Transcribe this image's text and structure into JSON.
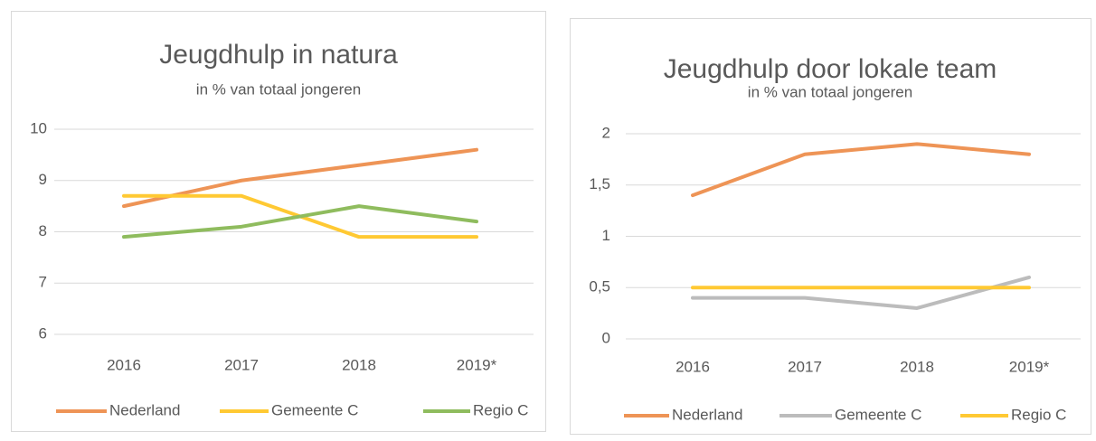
{
  "chart_data": [
    {
      "type": "line",
      "title": "Jeugdhulp in natura",
      "subtitle": "in % van totaal jongeren",
      "categories": [
        "2016",
        "2017",
        "2018",
        "2019*"
      ],
      "series": [
        {
          "name": "Nederland",
          "color": "#ee9456",
          "values": [
            8.5,
            9.0,
            9.3,
            9.6
          ]
        },
        {
          "name": "Gemeente C",
          "color": "#ffc933",
          "values": [
            8.7,
            8.7,
            7.9,
            7.9
          ]
        },
        {
          "name": "Regio C",
          "color": "#8fbc5e",
          "values": [
            7.9,
            8.1,
            8.5,
            8.2
          ]
        }
      ],
      "ylim": [
        6,
        10
      ],
      "yticks": [
        6,
        7,
        8,
        9,
        10
      ],
      "grid": true,
      "legend": "bottom"
    },
    {
      "type": "line",
      "title": "Jeugdhulp door lokale team",
      "subtitle": "in % van totaal jongeren",
      "categories": [
        "2016",
        "2017",
        "2018",
        "2019*"
      ],
      "series": [
        {
          "name": "Nederland",
          "color": "#ee9456",
          "values": [
            1.4,
            1.8,
            1.9,
            1.8
          ]
        },
        {
          "name": "Gemeente C",
          "color": "#bcbcbc",
          "values": [
            0.4,
            0.4,
            0.3,
            0.6
          ]
        },
        {
          "name": "Regio C",
          "color": "#ffc933",
          "values": [
            0.5,
            0.5,
            0.5,
            0.5
          ]
        }
      ],
      "ylim": [
        0,
        2
      ],
      "yticks": [
        0,
        {
          "value": 0.5,
          "label": "0,5"
        },
        1,
        {
          "value": 1.5,
          "label": "1,5"
        },
        2
      ],
      "grid": true,
      "legend": "bottom"
    }
  ]
}
